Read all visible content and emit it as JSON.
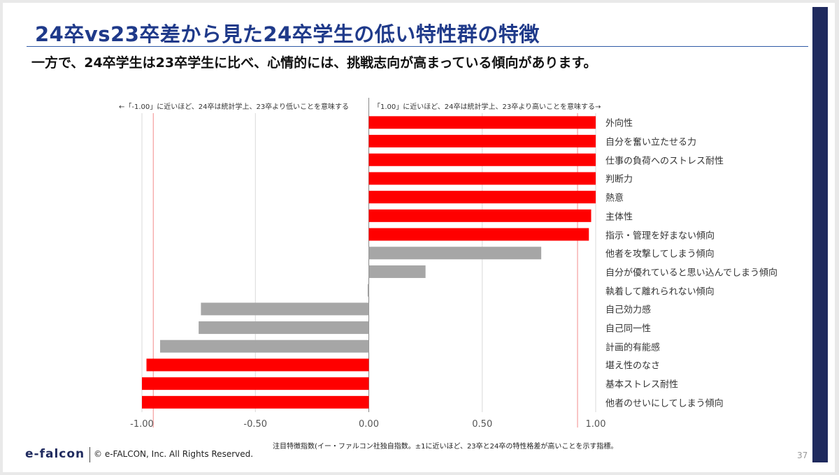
{
  "slide": {
    "title": "24卒vs23卒差から見た24卒学生の低い特性群の特徴",
    "subtitle": "一方で、24卒学生は23卒学生に比べ、心情的には、挑戦志向が高まっている傾向があります。",
    "footnote": "注目特徴指数(イー・ファルコン社独自指数。±1に近いほど、23卒と24卒の特性格差が高いことを示す指標。",
    "logo": "e-falcon",
    "copyright": "© e-FALCON, Inc. All Rights Reserved.",
    "page_number": "37"
  },
  "chart_data": {
    "type": "bar",
    "orientation": "horizontal",
    "annotation_left": "←「-1.00」に近いほど、24卒は統計学上、23卒より低いことを意味する",
    "annotation_right": "「1.00」に近いほど、24卒は統計学上、23卒より高いことを意味する→",
    "categories": [
      "外向性",
      "自分を奮い立たせる力",
      "仕事の負荷へのストレス耐性",
      "判断力",
      "熱意",
      "主体性",
      "指示・管理を好まない傾向",
      "他者を攻撃してしまう傾向",
      "自分が優れていると思い込んでしまう傾向",
      "執着して離れられない傾向",
      "自己効力感",
      "自己同一性",
      "計画的有能感",
      "堪え性のなさ",
      "基本ストレス耐性",
      "他者のせいにしてしまう傾向"
    ],
    "values": [
      1.0,
      1.0,
      1.0,
      1.0,
      1.0,
      0.98,
      0.97,
      0.76,
      0.25,
      -0.005,
      -0.74,
      -0.75,
      -0.92,
      -0.98,
      -1.0,
      -1.0
    ],
    "highlight": [
      true,
      true,
      true,
      true,
      true,
      true,
      true,
      false,
      false,
      false,
      false,
      false,
      false,
      true,
      true,
      true
    ],
    "colors": {
      "highlight": "#ff0000",
      "normal": "#a6a6a6",
      "threshold": "#f28b8b",
      "grid": "#d9d9d9"
    },
    "xlim": [
      -1.0,
      1.0
    ],
    "xticks": [
      -1.0,
      -0.5,
      0.0,
      0.5,
      1.0
    ],
    "xtick_labels": [
      "-1.00",
      "-0.50",
      "0.00",
      "0.50",
      "1.00"
    ],
    "threshold_lines": [
      -0.95,
      0.92
    ],
    "grid": true
  }
}
